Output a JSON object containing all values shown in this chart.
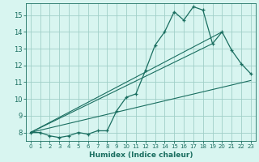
{
  "title": "",
  "xlabel": "Humidex (Indice chaleur)",
  "bg_color": "#d8f5f0",
  "grid_color": "#a0cfc8",
  "line_color": "#1a6e60",
  "xlim": [
    -0.5,
    23.5
  ],
  "ylim": [
    7.5,
    15.7
  ],
  "xticks": [
    0,
    1,
    2,
    3,
    4,
    5,
    6,
    7,
    8,
    9,
    10,
    11,
    12,
    13,
    14,
    15,
    16,
    17,
    18,
    19,
    20,
    21,
    22,
    23
  ],
  "yticks": [
    8,
    9,
    10,
    11,
    12,
    13,
    14,
    15
  ],
  "line1_x": [
    0,
    1,
    2,
    3,
    4,
    5,
    6,
    7,
    8,
    9,
    10,
    11,
    12,
    13,
    14,
    15,
    16,
    17,
    18,
    19,
    20,
    21,
    22,
    23
  ],
  "line1_y": [
    8.0,
    8.0,
    7.8,
    7.7,
    7.8,
    8.0,
    7.9,
    8.1,
    8.1,
    9.3,
    10.1,
    10.3,
    11.7,
    13.2,
    14.0,
    15.2,
    14.7,
    15.5,
    15.3,
    13.3,
    14.0,
    12.9,
    12.1,
    11.5
  ],
  "line2_x": [
    0,
    23
  ],
  "line2_y": [
    8.0,
    11.1
  ],
  "line3_x": [
    0,
    19
  ],
  "line3_y": [
    8.0,
    13.3
  ],
  "line4_x": [
    0,
    20
  ],
  "line4_y": [
    8.0,
    14.0
  ],
  "xtick_fontsize": 5.0,
  "ytick_fontsize": 6.0,
  "xlabel_fontsize": 6.5
}
